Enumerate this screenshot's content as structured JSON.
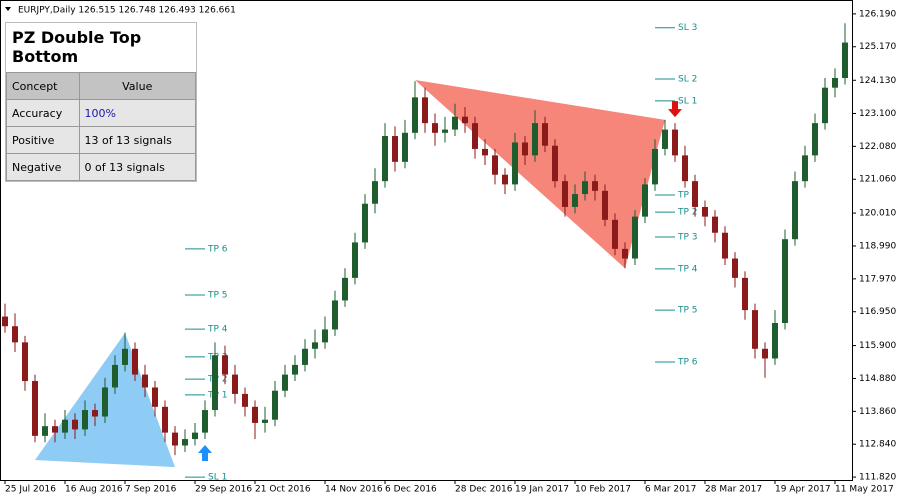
{
  "header": "EURJPY,Daily  126.515 126.748 126.493 126.661",
  "panel": {
    "title": "PZ Double Top Bottom",
    "columns": [
      "Concept",
      "Value"
    ],
    "rows": [
      [
        "Accuracy",
        "100%"
      ],
      [
        "Positive",
        "13 of 13 signals"
      ],
      [
        "Negative",
        "0 of 13 signals"
      ]
    ]
  },
  "chart_data": {
    "type": "candlestick",
    "bull_color": "#1f5c2e",
    "bear_color": "#8b1a1a",
    "candles": [
      [
        116.8,
        117.2,
        116.3,
        116.5
      ],
      [
        116.5,
        116.9,
        115.7,
        116.0
      ],
      [
        116.0,
        116.2,
        114.5,
        114.8
      ],
      [
        114.8,
        115.0,
        112.9,
        113.1
      ],
      [
        113.1,
        113.8,
        112.9,
        113.4
      ],
      [
        113.4,
        113.6,
        112.9,
        113.2
      ],
      [
        113.2,
        113.9,
        113.0,
        113.6
      ],
      [
        113.6,
        113.8,
        113.0,
        113.3
      ],
      [
        113.3,
        114.2,
        113.1,
        113.9
      ],
      [
        113.9,
        114.1,
        113.4,
        113.7
      ],
      [
        113.7,
        114.9,
        113.5,
        114.6
      ],
      [
        114.6,
        115.6,
        114.4,
        115.3
      ],
      [
        115.3,
        116.3,
        115.1,
        115.8
      ],
      [
        115.8,
        116.0,
        114.8,
        115.0
      ],
      [
        115.0,
        115.3,
        114.3,
        114.6
      ],
      [
        114.6,
        114.8,
        113.7,
        114.0
      ],
      [
        114.0,
        114.2,
        112.9,
        113.2
      ],
      [
        113.2,
        113.4,
        112.5,
        112.8
      ],
      [
        112.8,
        113.3,
        112.6,
        113.0
      ],
      [
        113.0,
        113.5,
        112.8,
        113.2
      ],
      [
        113.2,
        114.2,
        113.0,
        113.9
      ],
      [
        113.9,
        116.0,
        113.7,
        115.6
      ],
      [
        115.6,
        115.9,
        114.7,
        115.0
      ],
      [
        115.0,
        115.3,
        114.1,
        114.4
      ],
      [
        114.4,
        114.6,
        113.7,
        114.0
      ],
      [
        114.0,
        114.2,
        113.0,
        113.5
      ],
      [
        113.5,
        114.0,
        113.2,
        113.6
      ],
      [
        113.6,
        114.8,
        113.4,
        114.5
      ],
      [
        114.5,
        115.3,
        114.3,
        115.0
      ],
      [
        115.0,
        115.6,
        114.8,
        115.3
      ],
      [
        115.3,
        116.1,
        115.1,
        115.8
      ],
      [
        115.8,
        116.4,
        115.5,
        116.0
      ],
      [
        116.0,
        116.8,
        115.8,
        116.4
      ],
      [
        116.4,
        117.6,
        116.2,
        117.3
      ],
      [
        117.3,
        118.3,
        117.1,
        118.0
      ],
      [
        118.0,
        119.4,
        117.8,
        119.1
      ],
      [
        119.1,
        120.6,
        118.9,
        120.3
      ],
      [
        120.3,
        121.4,
        120.0,
        121.0
      ],
      [
        121.0,
        122.8,
        120.8,
        122.4
      ],
      [
        122.4,
        122.7,
        121.3,
        121.6
      ],
      [
        121.6,
        122.9,
        121.4,
        122.5
      ],
      [
        122.5,
        124.1,
        122.3,
        123.6
      ],
      [
        123.6,
        123.9,
        122.5,
        122.8
      ],
      [
        122.8,
        123.1,
        122.1,
        122.5
      ],
      [
        122.5,
        123.0,
        122.2,
        122.6
      ],
      [
        122.6,
        123.4,
        122.4,
        123.0
      ],
      [
        123.0,
        123.3,
        122.5,
        122.8
      ],
      [
        122.8,
        123.0,
        121.7,
        122.0
      ],
      [
        122.0,
        122.3,
        121.5,
        121.8
      ],
      [
        121.8,
        122.0,
        120.9,
        121.2
      ],
      [
        121.2,
        121.4,
        120.6,
        120.9
      ],
      [
        120.9,
        122.5,
        120.7,
        122.2
      ],
      [
        122.2,
        122.4,
        121.5,
        121.8
      ],
      [
        121.8,
        123.2,
        121.6,
        122.8
      ],
      [
        122.8,
        123.0,
        121.9,
        122.1
      ],
      [
        122.1,
        122.3,
        120.8,
        121.0
      ],
      [
        121.0,
        121.2,
        119.9,
        120.2
      ],
      [
        120.2,
        120.9,
        120.0,
        120.6
      ],
      [
        120.6,
        121.3,
        120.4,
        121.0
      ],
      [
        121.0,
        121.2,
        120.4,
        120.7
      ],
      [
        120.7,
        120.9,
        119.6,
        119.8
      ],
      [
        119.8,
        120.0,
        118.7,
        118.9
      ],
      [
        118.9,
        119.1,
        118.3,
        118.6
      ],
      [
        118.6,
        120.1,
        118.4,
        119.9
      ],
      [
        119.9,
        121.1,
        119.7,
        120.9
      ],
      [
        120.9,
        122.3,
        120.7,
        122.0
      ],
      [
        122.0,
        122.9,
        121.8,
        122.6
      ],
      [
        122.6,
        122.8,
        121.6,
        121.8
      ],
      [
        121.8,
        122.1,
        120.8,
        121.0
      ],
      [
        121.0,
        121.2,
        119.9,
        120.2
      ],
      [
        120.2,
        120.4,
        119.6,
        119.9
      ],
      [
        119.9,
        120.1,
        119.1,
        119.4
      ],
      [
        119.4,
        119.6,
        118.4,
        118.6
      ],
      [
        118.6,
        118.8,
        117.7,
        118.0
      ],
      [
        118.0,
        118.2,
        116.7,
        117.0
      ],
      [
        117.0,
        117.2,
        115.5,
        115.8
      ],
      [
        115.8,
        116.0,
        114.9,
        115.5
      ],
      [
        115.5,
        117.0,
        115.3,
        116.6
      ],
      [
        116.6,
        119.5,
        116.4,
        119.2
      ],
      [
        119.2,
        121.3,
        119.0,
        121.0
      ],
      [
        121.0,
        122.1,
        120.8,
        121.8
      ],
      [
        121.8,
        123.1,
        121.6,
        122.8
      ],
      [
        122.8,
        124.2,
        122.6,
        123.9
      ],
      [
        123.9,
        124.5,
        123.6,
        124.2
      ],
      [
        124.2,
        125.9,
        124.0,
        125.3
      ]
    ],
    "ylim": [
      111.73,
      126.62
    ],
    "yticks": [
      {
        "value": 126.19,
        "label": "126.190"
      },
      {
        "value": 125.17,
        "label": "125.170"
      },
      {
        "value": 124.13,
        "label": "124.130"
      },
      {
        "value": 123.1,
        "label": "123.100"
      },
      {
        "value": 122.08,
        "label": "122.080"
      },
      {
        "value": 121.06,
        "label": "121.060"
      },
      {
        "value": 120.01,
        "label": "120.010"
      },
      {
        "value": 118.99,
        "label": "118.990"
      },
      {
        "value": 117.97,
        "label": "117.970"
      },
      {
        "value": 116.95,
        "label": "116.950"
      },
      {
        "value": 115.9,
        "label": "115.900"
      },
      {
        "value": 114.88,
        "label": "114.880"
      },
      {
        "value": 113.86,
        "label": "113.860"
      },
      {
        "value": 112.84,
        "label": "112.840"
      },
      {
        "value": 111.82,
        "label": "111.820"
      }
    ],
    "xticks": [
      {
        "value": 0,
        "label": "25 Jul 2016"
      },
      {
        "value": 6,
        "label": "16 Aug 2016"
      },
      {
        "value": 12,
        "label": "7 Sep 2016"
      },
      {
        "value": 19,
        "label": "29 Sep 2016"
      },
      {
        "value": 25,
        "label": "21 Oct 2016"
      },
      {
        "value": 32,
        "label": "14 Nov 2016"
      },
      {
        "value": 38,
        "label": "6 Dec 2016"
      },
      {
        "value": 45,
        "label": "28 Dec 2016"
      },
      {
        "value": 51,
        "label": "19 Jan 2017"
      },
      {
        "value": 57,
        "label": "10 Feb 2017"
      },
      {
        "value": 64,
        "label": "6 Mar 2017"
      },
      {
        "value": 70,
        "label": "28 Mar 2017"
      },
      {
        "value": 77,
        "label": "19 Apr 2017"
      },
      {
        "value": 83,
        "label": "11 May 2017"
      }
    ],
    "patterns": [
      {
        "color": "#8ecbf5",
        "points": [
          [
            3,
            112.35
          ],
          [
            12,
            116.29
          ],
          [
            17,
            112.13
          ]
        ]
      },
      {
        "color": "#f6857a",
        "points": [
          [
            41,
            124.14
          ],
          [
            66,
            122.9
          ],
          [
            62,
            118.3
          ]
        ]
      }
    ],
    "level_color": "#1a8c8c",
    "level_groups": [
      {
        "from": 18,
        "to": 22,
        "levels": [
          {
            "label": "TP 6",
            "value": 118.9
          },
          {
            "label": "TP 5",
            "value": 117.47
          },
          {
            "label": "TP 4",
            "value": 116.41
          },
          {
            "label": "TP 3",
            "value": 115.55
          },
          {
            "label": "TP 2",
            "value": 114.86
          },
          {
            "label": "TP 1",
            "value": 114.37
          },
          {
            "label": "SL 1",
            "value": 111.82
          }
        ]
      },
      {
        "from": 65,
        "to": 70,
        "levels": [
          {
            "label": "SL 3",
            "value": 125.76
          },
          {
            "label": "SL 2",
            "value": 124.17
          },
          {
            "label": "SL 1",
            "value": 123.49
          },
          {
            "label": "TP 1",
            "value": 120.57
          },
          {
            "label": "TP 2",
            "value": 120.04
          },
          {
            "label": "TP 3",
            "value": 119.27
          },
          {
            "label": "TP 4",
            "value": 118.28
          },
          {
            "label": "TP 5",
            "value": 117.0
          },
          {
            "label": "TP 6",
            "value": 115.39
          }
        ]
      }
    ],
    "signals": [
      {
        "index": 20,
        "direction": "up",
        "color": "#1e8fff"
      },
      {
        "index": 67,
        "direction": "down",
        "color": "#e01010"
      }
    ]
  }
}
